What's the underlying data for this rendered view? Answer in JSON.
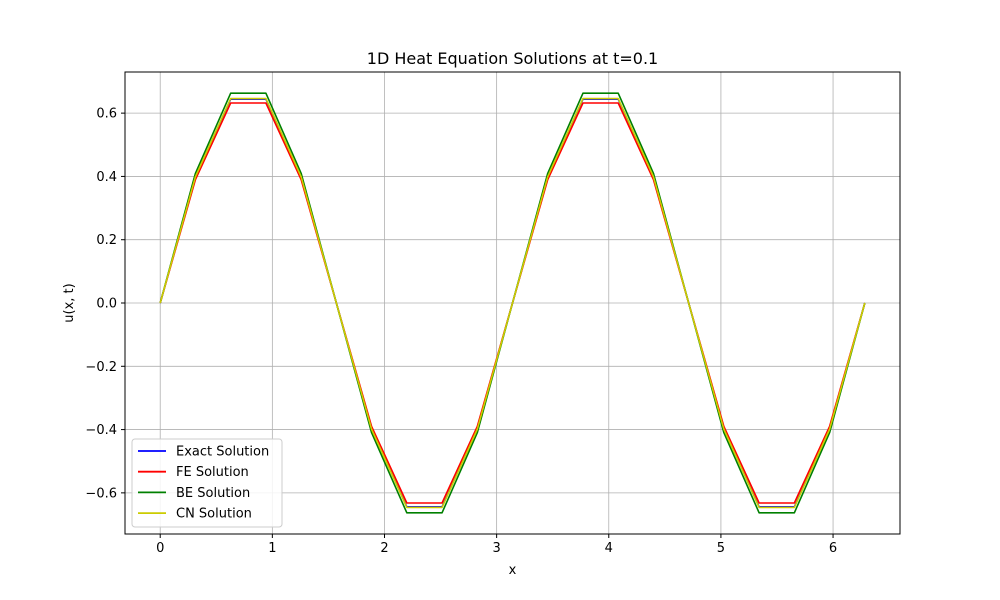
{
  "chart_data": {
    "type": "line",
    "title": "1D Heat Equation Solutions at t=0.1",
    "xlabel": "x",
    "ylabel": "u(x, t)",
    "xlim": [
      -0.314,
      6.597
    ],
    "ylim": [
      -0.73,
      0.73
    ],
    "xticks": [
      0,
      1,
      2,
      3,
      4,
      5,
      6
    ],
    "yticks": [
      -0.6,
      -0.4,
      -0.2,
      0.0,
      0.2,
      0.4,
      0.6
    ],
    "ytick_labels": [
      "−0.6",
      "−0.4",
      "−0.2",
      "0.0",
      "0.2",
      "0.4",
      "0.6"
    ],
    "grid": true,
    "legend_position": "lower-left",
    "x": [
      0,
      0.3142,
      0.6283,
      0.9425,
      1.2566,
      1.5708,
      1.885,
      2.1991,
      2.5133,
      2.8274,
      3.1416,
      3.4558,
      3.7699,
      4.0841,
      4.3982,
      4.7124,
      5.0265,
      5.3407,
      5.6549,
      5.969,
      6.2832
    ],
    "series": [
      {
        "name": "Exact Solution",
        "color": "#0000ff",
        "values": [
          0,
          0.397,
          0.644,
          0.644,
          0.397,
          0,
          -0.397,
          -0.644,
          -0.644,
          -0.397,
          0,
          0.397,
          0.644,
          0.644,
          0.397,
          0,
          -0.397,
          -0.644,
          -0.644,
          -0.397,
          0
        ]
      },
      {
        "name": "FE Solution",
        "color": "#ff0000",
        "values": [
          0,
          0.39,
          0.632,
          0.632,
          0.39,
          0,
          -0.39,
          -0.632,
          -0.632,
          -0.39,
          0,
          0.39,
          0.632,
          0.632,
          0.39,
          0,
          -0.39,
          -0.632,
          -0.632,
          -0.39,
          0
        ]
      },
      {
        "name": "BE Solution",
        "color": "#008000",
        "values": [
          0,
          0.41,
          0.663,
          0.663,
          0.41,
          0,
          -0.41,
          -0.663,
          -0.663,
          -0.41,
          0,
          0.41,
          0.663,
          0.663,
          0.41,
          0,
          -0.41,
          -0.663,
          -0.663,
          -0.41,
          0
        ]
      },
      {
        "name": "CN Solution",
        "color": "#cccc00",
        "values": [
          0,
          0.399,
          0.646,
          0.646,
          0.399,
          0,
          -0.399,
          -0.646,
          -0.646,
          -0.399,
          0,
          0.399,
          0.646,
          0.646,
          0.399,
          0,
          -0.399,
          -0.646,
          -0.646,
          -0.399,
          0
        ]
      }
    ]
  }
}
